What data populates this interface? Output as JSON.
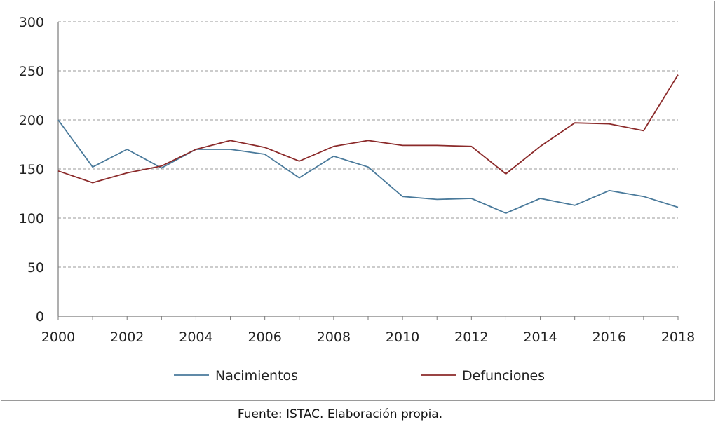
{
  "chart_data": {
    "type": "line",
    "title": "",
    "xlabel": "",
    "ylabel": "",
    "x": [
      2000,
      2001,
      2002,
      2003,
      2004,
      2005,
      2006,
      2007,
      2008,
      2009,
      2010,
      2011,
      2012,
      2013,
      2014,
      2015,
      2016,
      2017,
      2018
    ],
    "xlim": [
      2000,
      2018
    ],
    "ylim": [
      0,
      300
    ],
    "x_ticks": [
      "2000",
      "2002",
      "2004",
      "2006",
      "2008",
      "2010",
      "2012",
      "2014",
      "2016",
      "2018"
    ],
    "y_ticks": [
      "0",
      "50",
      "100",
      "150",
      "200",
      "250",
      "300"
    ],
    "grid": "horizontal dashed",
    "legend_position": "bottom",
    "series": [
      {
        "name": "Nacimientos",
        "color": "#4a7a9b",
        "values": [
          200,
          152,
          170,
          151,
          170,
          170,
          165,
          141,
          163,
          152,
          122,
          119,
          120,
          105,
          120,
          113,
          128,
          122,
          111
        ]
      },
      {
        "name": "Defunciones",
        "color": "#8b2a2a",
        "values": [
          148,
          136,
          146,
          153,
          170,
          179,
          172,
          158,
          173,
          179,
          174,
          174,
          173,
          145,
          173,
          197,
          196,
          189,
          246
        ]
      }
    ]
  },
  "source": "Fuente: ISTAC. Elaboración propia."
}
